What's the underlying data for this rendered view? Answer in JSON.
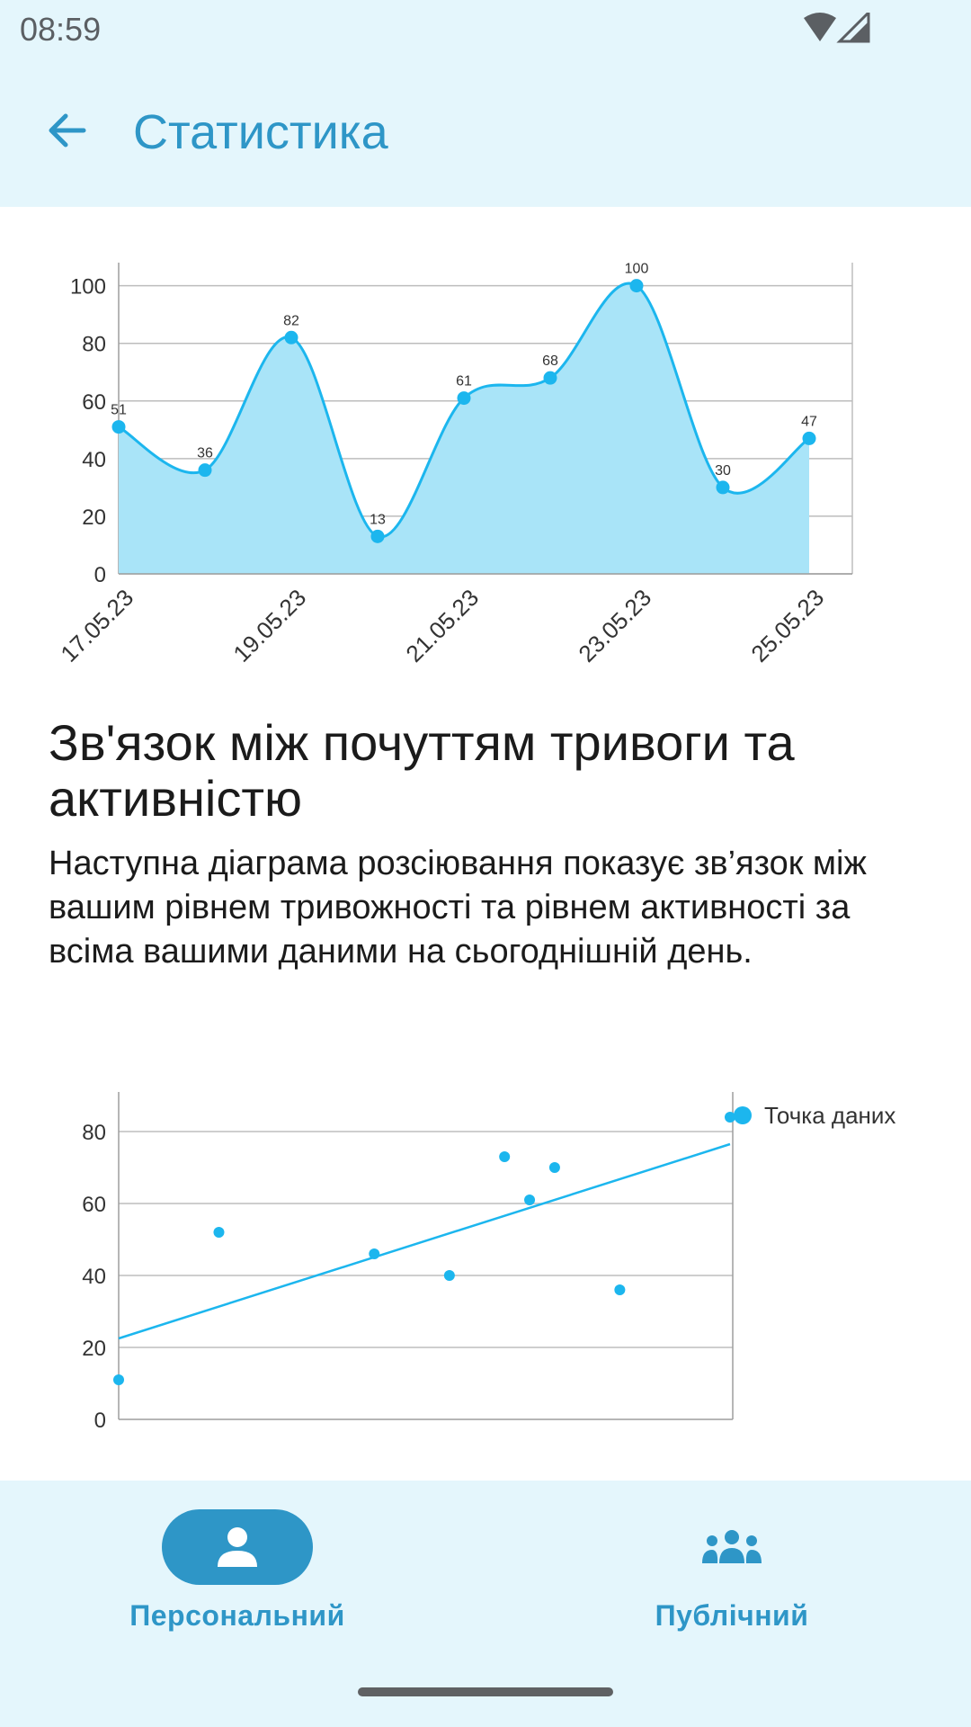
{
  "status_bar": {
    "time": "08:59",
    "icons": [
      "wifi-icon",
      "signal-icon"
    ]
  },
  "app_bar": {
    "title": "Статистика",
    "back_icon": "arrow-left-icon"
  },
  "colors": {
    "accent": "#2e96c7",
    "chart_line": "#1cb6ee",
    "chart_fill": "#a9e4f8",
    "header_bg": "#e4f6fc"
  },
  "chart_data": [
    {
      "type": "area",
      "x": [
        "17.05.23",
        "18.05.23",
        "19.05.23",
        "20.05.23",
        "21.05.23",
        "22.05.23",
        "23.05.23",
        "24.05.23",
        "25.05.23"
      ],
      "values": [
        51,
        36,
        82,
        13,
        61,
        68,
        100,
        30,
        47
      ],
      "x_tick_labels": [
        "17.05.23",
        "19.05.23",
        "21.05.23",
        "23.05.23",
        "25.05.23"
      ],
      "y_ticks": [
        0,
        20,
        40,
        60,
        80,
        100
      ],
      "ylim": [
        0,
        108
      ],
      "data_labels": true,
      "smooth": true,
      "grid": true
    },
    {
      "type": "scatter",
      "points": [
        {
          "x": 0,
          "y": 11
        },
        {
          "x": 1,
          "y": 52
        },
        {
          "x": 2.55,
          "y": 46
        },
        {
          "x": 3.3,
          "y": 40
        },
        {
          "x": 3.85,
          "y": 73
        },
        {
          "x": 4.1,
          "y": 61
        },
        {
          "x": 4.35,
          "y": 70
        },
        {
          "x": 5,
          "y": 36
        },
        {
          "x": 6.1,
          "y": 84
        }
      ],
      "trendline": {
        "from": [
          0,
          22.5
        ],
        "to": [
          6.1,
          76.5
        ]
      },
      "y_ticks": [
        0,
        20,
        40,
        60,
        80
      ],
      "ylim": [
        0,
        91
      ],
      "xlim": [
        0,
        6.1
      ],
      "legend": {
        "label": "Точка даних",
        "position": "top-right"
      },
      "grid": true
    }
  ],
  "section": {
    "title": "Зв'язок між почуттям тривоги та активністю",
    "description": "Наступна діаграма розсіювання показує зв’язок між вашим рівнем тривожності та рівнем активності за всіма вашими даними на сьогоднішній день."
  },
  "bottom_nav": {
    "items": [
      {
        "label": "Персональний",
        "icon": "person-icon",
        "active": true
      },
      {
        "label": "Публічний",
        "icon": "group-icon",
        "active": false
      }
    ]
  }
}
